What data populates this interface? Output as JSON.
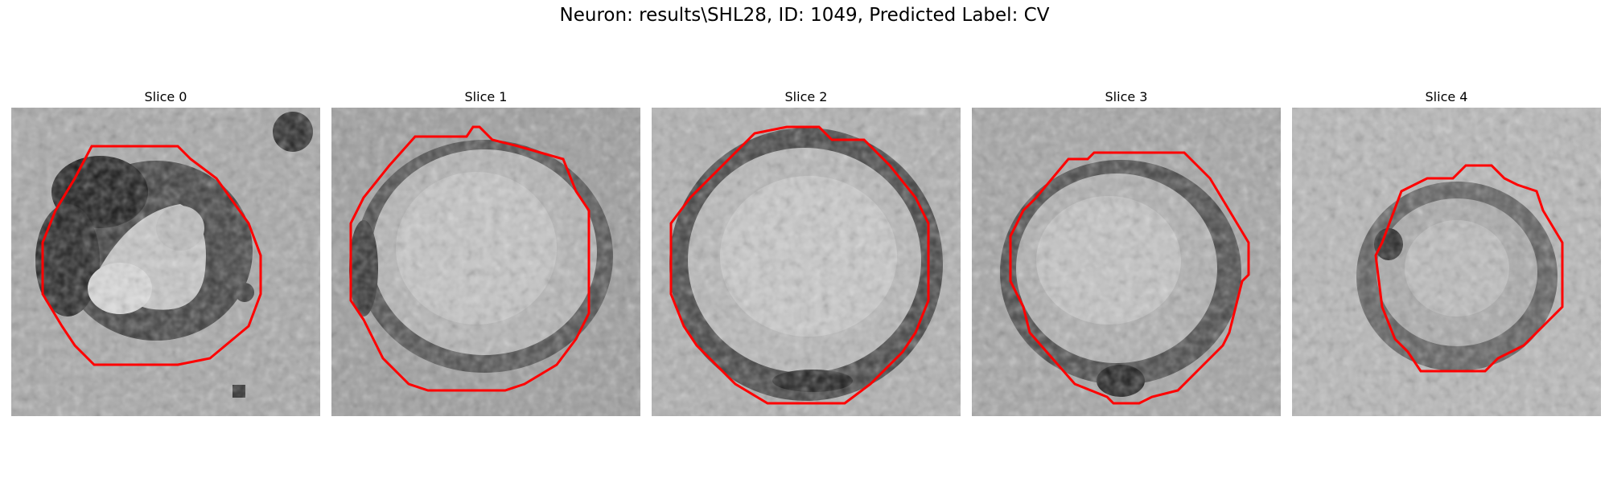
{
  "figure": {
    "title": "Neuron: results\\SHL28, ID: 1049, Predicted Label: CV",
    "contour_color": "#ff0000"
  },
  "slices": [
    {
      "label": "Slice 0"
    },
    {
      "label": "Slice 1"
    },
    {
      "label": "Slice 2"
    },
    {
      "label": "Slice 3"
    },
    {
      "label": "Slice 4"
    }
  ]
}
